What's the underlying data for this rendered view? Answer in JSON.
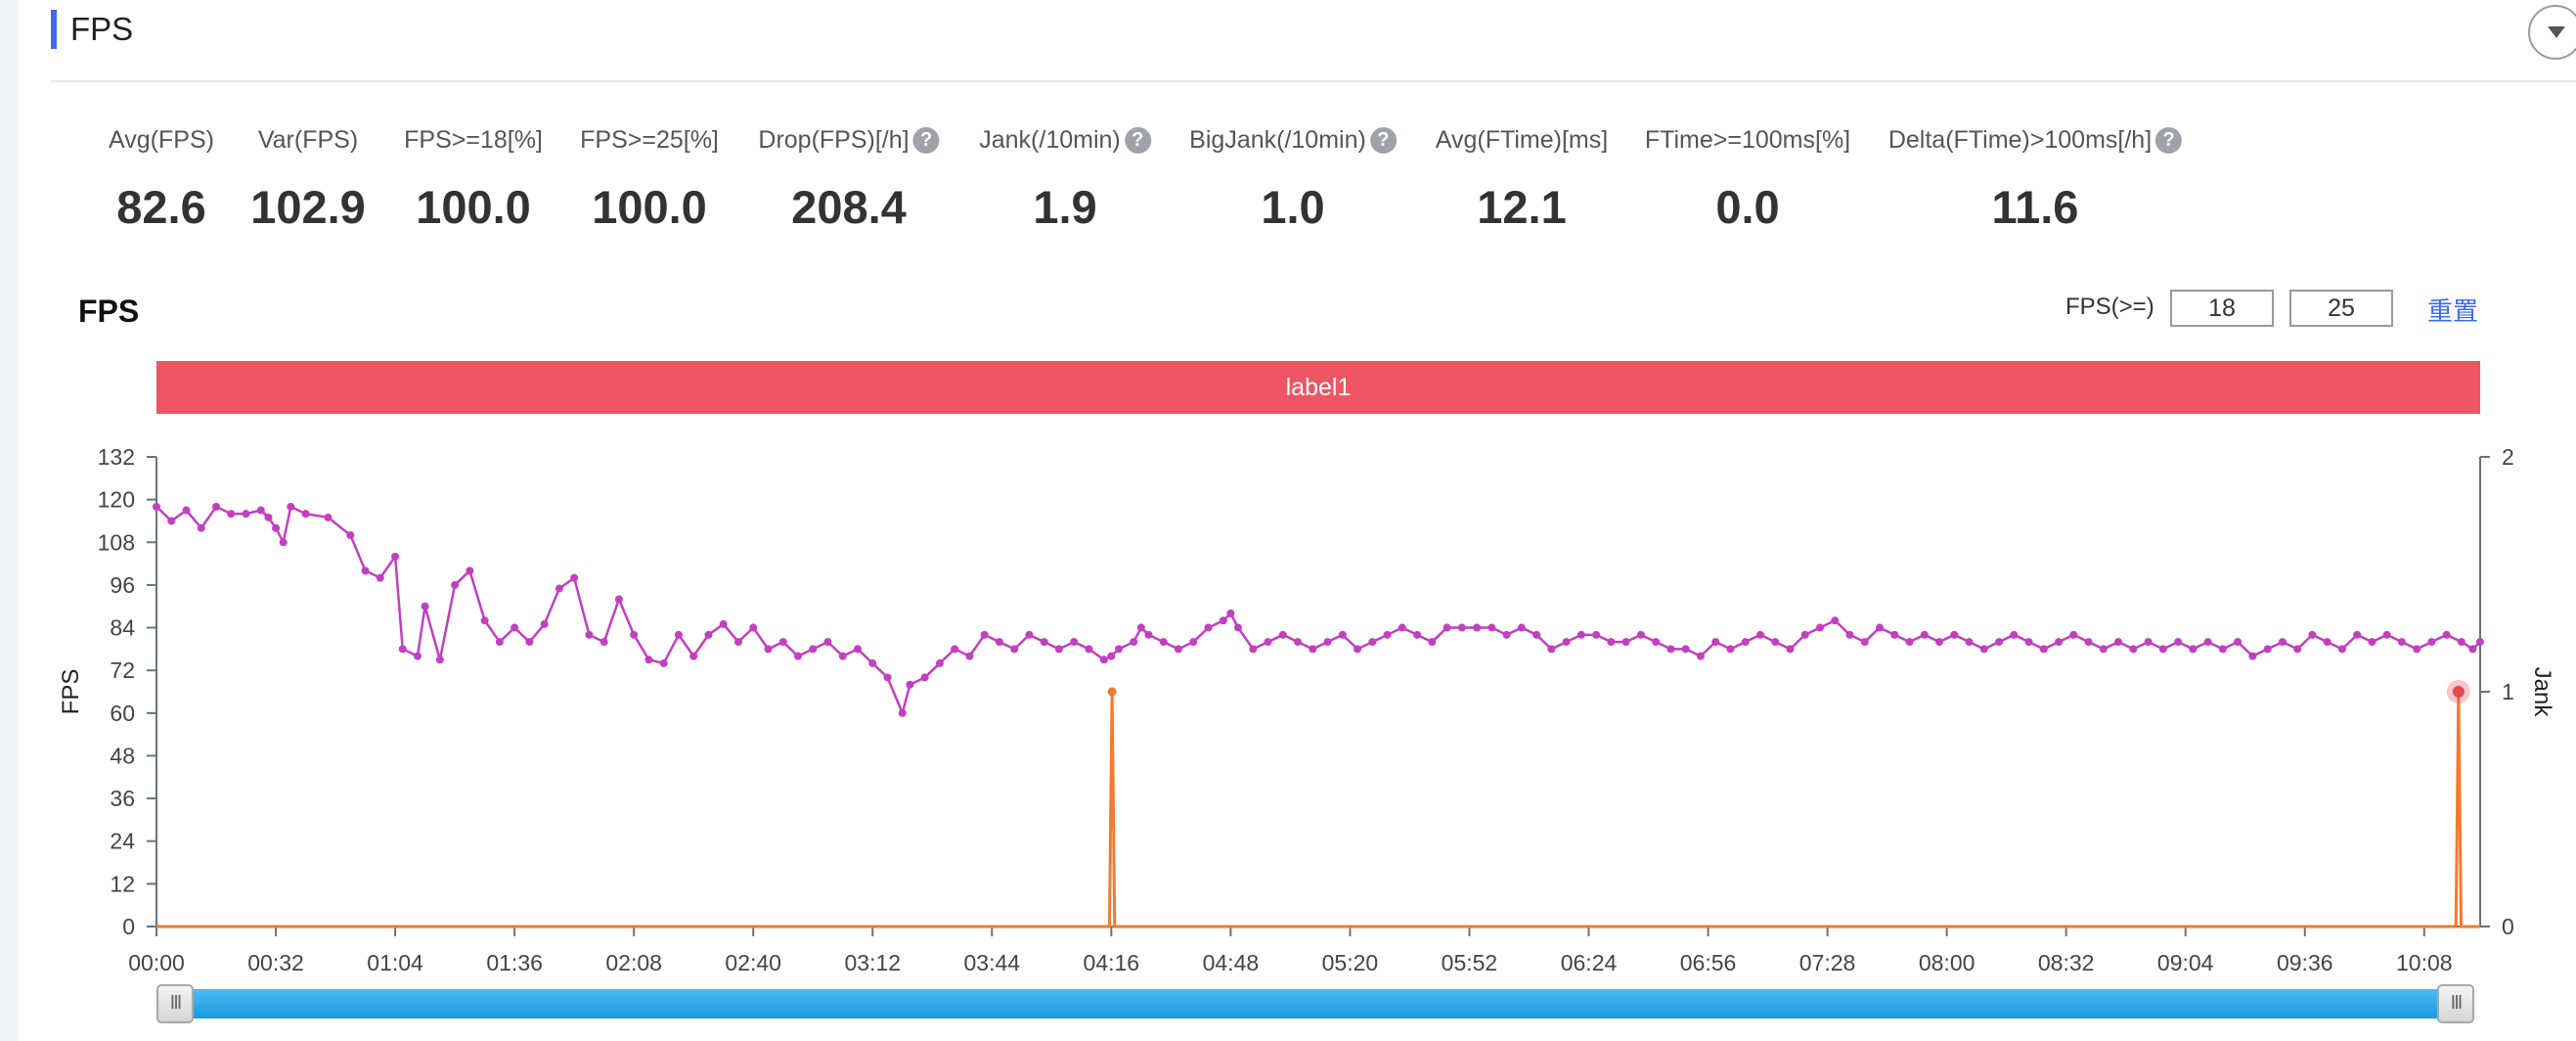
{
  "panel": {
    "title": "FPS"
  },
  "metrics": [
    {
      "label": "Avg(FPS)",
      "value": "82.6",
      "help": false
    },
    {
      "label": "Var(FPS)",
      "value": "102.9",
      "help": false
    },
    {
      "label": "FPS>=18[%]",
      "value": "100.0",
      "help": false
    },
    {
      "label": "FPS>=25[%]",
      "value": "100.0",
      "help": false
    },
    {
      "label": "Drop(FPS)[/h]",
      "value": "208.4",
      "help": true
    },
    {
      "label": "Jank(/10min)",
      "value": "1.9",
      "help": true
    },
    {
      "label": "BigJank(/10min)",
      "value": "1.0",
      "help": true
    },
    {
      "label": "Avg(FTime)[ms]",
      "value": "12.1",
      "help": false
    },
    {
      "label": "FTime>=100ms[%]",
      "value": "0.0",
      "help": false
    },
    {
      "label": "Delta(FTime)>100ms[/h]",
      "value": "11.6",
      "help": true
    }
  ],
  "help_glyph": "?",
  "chart": {
    "title": "FPS",
    "filter_label": "FPS(>=)",
    "threshold_low": "18",
    "threshold_high": "25",
    "reset_label": "重置",
    "label_bar": "label1"
  },
  "slider": {
    "handle_glyph": "III",
    "start_fraction": 0,
    "end_fraction": 1
  },
  "chart_data": {
    "type": "line",
    "xlabel": "",
    "ylabel": "FPS",
    "y2label": "Jank",
    "x_ticks": [
      "00:00",
      "00:32",
      "01:04",
      "01:36",
      "02:08",
      "02:40",
      "03:12",
      "03:44",
      "04:16",
      "04:48",
      "05:20",
      "05:52",
      "06:24",
      "06:56",
      "07:28",
      "08:00",
      "08:32",
      "09:04",
      "09:36",
      "10:08"
    ],
    "x_tick_seconds": [
      0,
      32,
      64,
      96,
      128,
      160,
      192,
      224,
      256,
      288,
      320,
      352,
      384,
      416,
      448,
      480,
      512,
      544,
      576,
      608
    ],
    "x_range_seconds": [
      0,
      623
    ],
    "ylim": [
      0,
      132
    ],
    "y_ticks": [
      0,
      12,
      24,
      36,
      48,
      60,
      72,
      84,
      96,
      108,
      120,
      132
    ],
    "y2lim": [
      0,
      2
    ],
    "y2_ticks": [
      0,
      1,
      2
    ],
    "colors": {
      "fps": "#c23fc0",
      "jank": "#f37a2f",
      "highlight": "#e8474f"
    },
    "series": [
      {
        "name": "FPS",
        "axis": "left",
        "points": [
          [
            0,
            118
          ],
          [
            4,
            114
          ],
          [
            8,
            117
          ],
          [
            12,
            112
          ],
          [
            16,
            118
          ],
          [
            20,
            116
          ],
          [
            24,
            116
          ],
          [
            28,
            117
          ],
          [
            30,
            115
          ],
          [
            32,
            112
          ],
          [
            34,
            108
          ],
          [
            36,
            118
          ],
          [
            40,
            116
          ],
          [
            46,
            115
          ],
          [
            52,
            110
          ],
          [
            56,
            100
          ],
          [
            60,
            98
          ],
          [
            64,
            104
          ],
          [
            66,
            78
          ],
          [
            70,
            76
          ],
          [
            72,
            90
          ],
          [
            76,
            75
          ],
          [
            80,
            96
          ],
          [
            84,
            100
          ],
          [
            88,
            86
          ],
          [
            92,
            80
          ],
          [
            96,
            84
          ],
          [
            100,
            80
          ],
          [
            104,
            85
          ],
          [
            108,
            95
          ],
          [
            112,
            98
          ],
          [
            116,
            82
          ],
          [
            120,
            80
          ],
          [
            124,
            92
          ],
          [
            128,
            82
          ],
          [
            132,
            75
          ],
          [
            136,
            74
          ],
          [
            140,
            82
          ],
          [
            144,
            76
          ],
          [
            148,
            82
          ],
          [
            152,
            85
          ],
          [
            156,
            80
          ],
          [
            160,
            84
          ],
          [
            164,
            78
          ],
          [
            168,
            80
          ],
          [
            172,
            76
          ],
          [
            176,
            78
          ],
          [
            180,
            80
          ],
          [
            184,
            76
          ],
          [
            188,
            78
          ],
          [
            192,
            74
          ],
          [
            196,
            70
          ],
          [
            200,
            60
          ],
          [
            202,
            68
          ],
          [
            206,
            70
          ],
          [
            210,
            74
          ],
          [
            214,
            78
          ],
          [
            218,
            76
          ],
          [
            222,
            82
          ],
          [
            226,
            80
          ],
          [
            230,
            78
          ],
          [
            234,
            82
          ],
          [
            238,
            80
          ],
          [
            242,
            78
          ],
          [
            246,
            80
          ],
          [
            250,
            78
          ],
          [
            254,
            75
          ],
          [
            256,
            76
          ],
          [
            258,
            78
          ],
          [
            262,
            80
          ],
          [
            264,
            84
          ],
          [
            266,
            82
          ],
          [
            270,
            80
          ],
          [
            274,
            78
          ],
          [
            278,
            80
          ],
          [
            282,
            84
          ],
          [
            286,
            86
          ],
          [
            288,
            88
          ],
          [
            290,
            84
          ],
          [
            294,
            78
          ],
          [
            298,
            80
          ],
          [
            302,
            82
          ],
          [
            306,
            80
          ],
          [
            310,
            78
          ],
          [
            314,
            80
          ],
          [
            318,
            82
          ],
          [
            322,
            78
          ],
          [
            326,
            80
          ],
          [
            330,
            82
          ],
          [
            334,
            84
          ],
          [
            338,
            82
          ],
          [
            342,
            80
          ],
          [
            346,
            84
          ],
          [
            350,
            84
          ],
          [
            354,
            84
          ],
          [
            358,
            84
          ],
          [
            362,
            82
          ],
          [
            366,
            84
          ],
          [
            370,
            82
          ],
          [
            374,
            78
          ],
          [
            378,
            80
          ],
          [
            382,
            82
          ],
          [
            386,
            82
          ],
          [
            390,
            80
          ],
          [
            394,
            80
          ],
          [
            398,
            82
          ],
          [
            402,
            80
          ],
          [
            406,
            78
          ],
          [
            410,
            78
          ],
          [
            414,
            76
          ],
          [
            418,
            80
          ],
          [
            422,
            78
          ],
          [
            426,
            80
          ],
          [
            430,
            82
          ],
          [
            434,
            80
          ],
          [
            438,
            78
          ],
          [
            442,
            82
          ],
          [
            446,
            84
          ],
          [
            450,
            86
          ],
          [
            454,
            82
          ],
          [
            458,
            80
          ],
          [
            462,
            84
          ],
          [
            466,
            82
          ],
          [
            470,
            80
          ],
          [
            474,
            82
          ],
          [
            478,
            80
          ],
          [
            482,
            82
          ],
          [
            486,
            80
          ],
          [
            490,
            78
          ],
          [
            494,
            80
          ],
          [
            498,
            82
          ],
          [
            502,
            80
          ],
          [
            506,
            78
          ],
          [
            510,
            80
          ],
          [
            514,
            82
          ],
          [
            518,
            80
          ],
          [
            522,
            78
          ],
          [
            526,
            80
          ],
          [
            530,
            78
          ],
          [
            534,
            80
          ],
          [
            538,
            78
          ],
          [
            542,
            80
          ],
          [
            546,
            78
          ],
          [
            550,
            80
          ],
          [
            554,
            78
          ],
          [
            558,
            80
          ],
          [
            562,
            76
          ],
          [
            566,
            78
          ],
          [
            570,
            80
          ],
          [
            574,
            78
          ],
          [
            578,
            82
          ],
          [
            582,
            80
          ],
          [
            586,
            78
          ],
          [
            590,
            82
          ],
          [
            594,
            80
          ],
          [
            598,
            82
          ],
          [
            602,
            80
          ],
          [
            606,
            78
          ],
          [
            610,
            80
          ],
          [
            614,
            82
          ],
          [
            618,
            80
          ],
          [
            621,
            78
          ],
          [
            623,
            80
          ]
        ]
      },
      {
        "name": "Jank",
        "axis": "right",
        "points": [
          [
            0,
            0
          ],
          [
            255.5,
            0
          ],
          [
            256.2,
            1
          ],
          [
            256.9,
            0
          ],
          [
            616.5,
            0
          ],
          [
            617.2,
            1
          ],
          [
            617.9,
            0
          ],
          [
            623,
            0
          ]
        ]
      }
    ],
    "highlight_point": {
      "series": "Jank",
      "x_seconds": 617.2,
      "y": 1
    }
  }
}
